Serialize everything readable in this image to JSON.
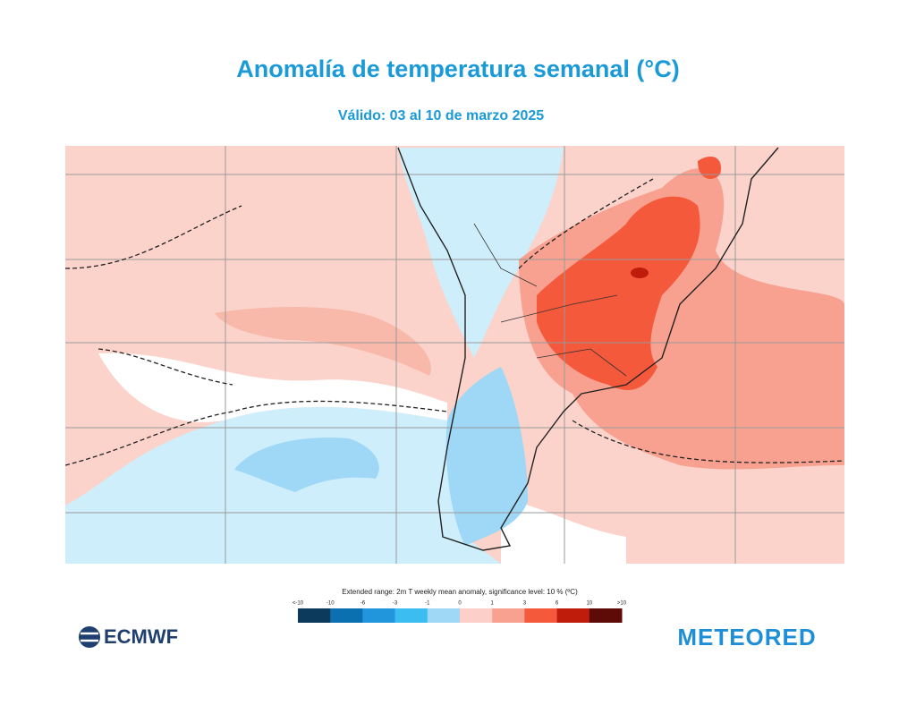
{
  "header": {
    "title": "Anomalía de temperatura semanal  (°C)",
    "subtitle": "Válido: 03 al 10 de marzo 2025"
  },
  "legend": {
    "title": "Extended range: 2m T weekly mean anomaly, significance level: 10 % (ºC)",
    "labels": [
      "<-10",
      "-10",
      "-6",
      "-3",
      "-1",
      "0",
      "1",
      "3",
      "6",
      "10",
      ">10"
    ],
    "colors": [
      "#0b3a5c",
      "#0b70b0",
      "#2196dc",
      "#3cbdf2",
      "#9ed8f6",
      "#fcd0c8",
      "#f8a190",
      "#f4593b",
      "#bf1c0c",
      "#5e0a06"
    ]
  },
  "logos": {
    "left": "ECMWF",
    "right": "METEORED"
  }
}
